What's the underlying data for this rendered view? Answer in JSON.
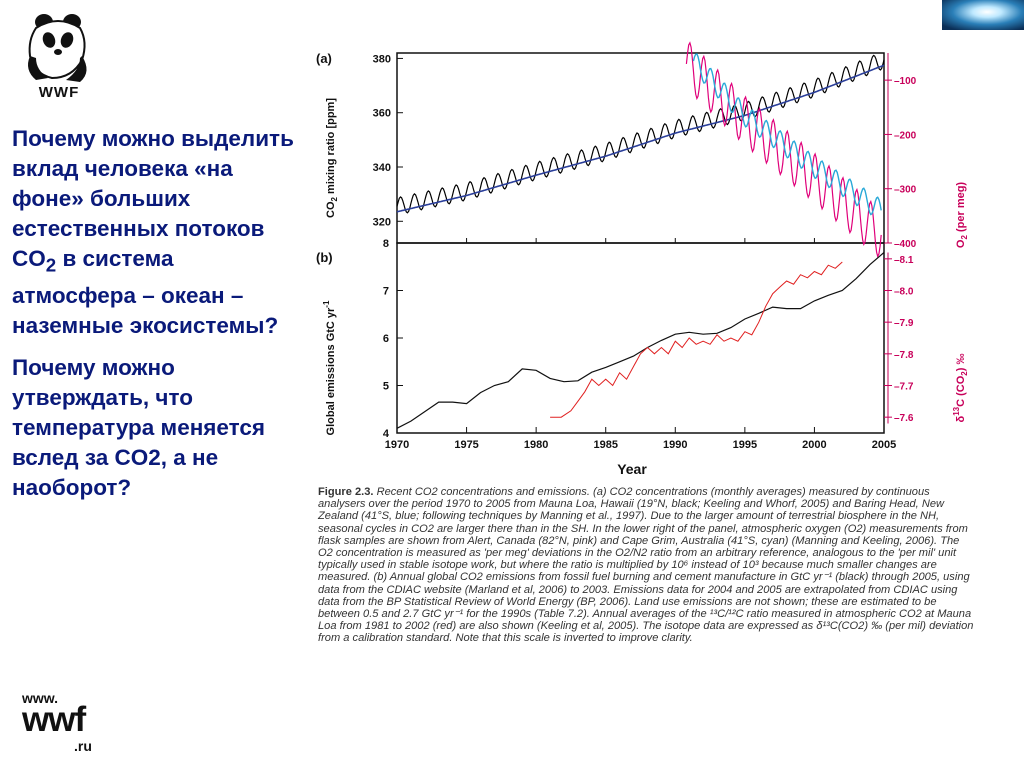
{
  "logo": {
    "text": "WWF",
    "icon": "panda-icon"
  },
  "questions": [
    {
      "before": "Почему можно выделить вклад человека «на фоне» больших естественных потоков CO",
      "sub": "2",
      "after": " в система атмосфера – океан – наземные экосистемы?"
    },
    {
      "before": "Почему можно утверждать, что температура меняется вслед за CO2, а не наоборот?",
      "sub": "",
      "after": ""
    }
  ],
  "site": {
    "line1": "www.",
    "line2": "wwf",
    "line3": ".ru"
  },
  "colors": {
    "question_text": "#0a1a7a",
    "co2_line": "#000000",
    "co2_trend": "#2b3f9a",
    "o2_alert": "#e0007a",
    "o2_cape_grim": "#29a9d8",
    "emissions": "#111111",
    "delta13c": "#e02020",
    "right_axis": "#c8005a"
  },
  "chart_data": [
    {
      "type": "line",
      "panel_label": "(a)",
      "ylabel": "CO2 mixing ratio [ppm]",
      "ylabel_main": "CO",
      "ylabel_sub": "2",
      "ylabel_rest": " mixing ratio [ppm]",
      "xlim": [
        1970,
        2005
      ],
      "ylim": [
        312,
        382
      ],
      "yticks": [
        320,
        340,
        360,
        380
      ],
      "y2label": "O2 (per meg)",
      "y2label_main": "O",
      "y2label_sub": "2",
      "y2label_rest": " (per meg)",
      "y2lim": [
        -400,
        -50
      ],
      "y2ticks": [
        -100,
        -200,
        -300,
        -400
      ],
      "series": [
        {
          "role": "co2_monthly",
          "seasonal_amplitude": 3.2,
          "x": [
            1970,
            1975,
            1980,
            1985,
            1990,
            1995,
            2000,
            2005
          ],
          "values": [
            325.5,
            331,
            338.5,
            345.5,
            354,
            360.5,
            369,
            379.5
          ]
        },
        {
          "role": "co2_trend",
          "x": [
            1970,
            1975,
            1980,
            1985,
            1990,
            1995,
            2000,
            2005
          ],
          "values": [
            323.5,
            329.5,
            337,
            344,
            352.5,
            359,
            367.5,
            377.5
          ]
        },
        {
          "role": "o2_alert",
          "seasonal_amplitude": 45,
          "x": [
            1990.8,
            1995,
            2000,
            2004.8
          ],
          "values": [
            -70,
            -175,
            -280,
            -385
          ]
        },
        {
          "role": "o2_cape_grim",
          "seasonal_amplitude": 20,
          "x": [
            1991.3,
            1995,
            2000,
            2004.8
          ],
          "values": [
            -65,
            -165,
            -260,
            -340
          ]
        }
      ]
    },
    {
      "type": "line",
      "panel_label": "(b)",
      "ylabel": "Global emissions GtC yr-1",
      "ylabel_main": "Global emissions GtC yr",
      "ylabel_sup": "-1",
      "xlabel": "Year",
      "xlim": [
        1970,
        2005
      ],
      "xticks": [
        1970,
        1975,
        1980,
        1985,
        1990,
        1995,
        2000,
        2005
      ],
      "ylim": [
        4,
        8
      ],
      "yticks": [
        4,
        5,
        6,
        7,
        8
      ],
      "y2label": "δ13C (CO2) ‰",
      "y2label_delta": "δ",
      "y2label_sup": "13",
      "y2label_main": "C (CO",
      "y2label_sub": "2",
      "y2label_rest": ") ‰",
      "y2lim": [
        -7.55,
        -8.15
      ],
      "y2ticks": [
        -8.1,
        -8.0,
        -7.9,
        -7.8,
        -7.7,
        -7.6
      ],
      "y2ticklabels": [
        "–8.1",
        "–8.0",
        "–7.9",
        "–7.8",
        "–7.7",
        "–7.6"
      ],
      "series": [
        {
          "role": "emissions",
          "x": [
            1970,
            1971,
            1972,
            1973,
            1974,
            1975,
            1976,
            1977,
            1978,
            1979,
            1980,
            1981,
            1982,
            1983,
            1984,
            1985,
            1986,
            1987,
            1988,
            1989,
            1990,
            1991,
            1992,
            1993,
            1994,
            1995,
            1996,
            1997,
            1998,
            1999,
            2000,
            2001,
            2002,
            2003,
            2004,
            2005
          ],
          "values": [
            4.1,
            4.25,
            4.45,
            4.65,
            4.65,
            4.62,
            4.85,
            5.0,
            5.08,
            5.35,
            5.32,
            5.15,
            5.08,
            5.1,
            5.28,
            5.38,
            5.5,
            5.62,
            5.8,
            5.95,
            6.08,
            6.12,
            6.08,
            6.1,
            6.22,
            6.4,
            6.52,
            6.65,
            6.62,
            6.62,
            6.78,
            6.9,
            7.0,
            7.25,
            7.55,
            7.8
          ]
        },
        {
          "role": "delta13c",
          "x": [
            1981,
            1981.8,
            1982.5,
            1983,
            1983.5,
            1984,
            1984.5,
            1985,
            1985.5,
            1986,
            1986.5,
            1987,
            1987.5,
            1988,
            1988.5,
            1989,
            1989.5,
            1990,
            1990.5,
            1991,
            1991.5,
            1992,
            1992.5,
            1993,
            1993.5,
            1994,
            1994.5,
            1995,
            1995.5,
            1996,
            1996.5,
            1997,
            1997.5,
            1998,
            1998.5,
            1999,
            1999.5,
            2000,
            2000.5,
            2001,
            2001.5,
            2002
          ],
          "values": [
            -7.6,
            -7.6,
            -7.62,
            -7.65,
            -7.68,
            -7.72,
            -7.7,
            -7.72,
            -7.7,
            -7.74,
            -7.72,
            -7.76,
            -7.8,
            -7.82,
            -7.8,
            -7.82,
            -7.8,
            -7.84,
            -7.82,
            -7.85,
            -7.83,
            -7.84,
            -7.83,
            -7.86,
            -7.84,
            -7.85,
            -7.84,
            -7.87,
            -7.86,
            -7.9,
            -7.95,
            -7.99,
            -8.01,
            -8.03,
            -8.02,
            -8.05,
            -8.04,
            -8.06,
            -8.05,
            -8.08,
            -8.07,
            -8.09
          ]
        }
      ]
    }
  ],
  "caption": {
    "figure": "Figure 2.3.",
    "text": " Recent CO2 concentrations and emissions. (a) CO2 concentrations (monthly averages) measured by continuous analysers over the period 1970 to 2005 from Mauna Loa, Hawaii (19°N, black; Keeling and Whorf, 2005) and Baring Head, New Zealand (41°S, blue; following techniques by Manning et al., 1997). Due to the larger amount of terrestrial biosphere in the NH, seasonal cycles in CO2 are larger there than in the SH. In the lower right of the panel, atmospheric oxygen (O2) measurements from flask samples are shown from Alert, Canada (82°N, pink) and Cape Grim, Australia (41°S, cyan) (Manning and Keeling, 2006). The O2 concentration is measured as 'per meg' deviations in the O2/N2 ratio from an arbitrary reference, analogous to the 'per mil' unit typically used in stable isotope work, but where the ratio is multiplied by 10⁶ instead of 10³ because much smaller changes are measured. (b) Annual global CO2 emissions from fossil fuel burning and cement manufacture in GtC yr⁻¹ (black) through 2005, using data from the CDIAC website (Marland et al, 2006) to 2003. Emissions data for 2004 and 2005 are extrapolated from CDIAC using data from the BP Statistical Review of World Energy (BP, 2006). Land use emissions are not shown; these are estimated to be between 0.5 and 2.7 GtC yr⁻¹ for the 1990s (Table 7.2). Annual averages of the ¹³C/¹²C ratio measured in atmospheric CO2 at Mauna Loa from 1981 to 2002 (red) are also shown (Keeling et al, 2005). The isotope data are expressed as δ¹³C(CO2) ‰ (per mil) deviation from a calibration standard. Note that this scale is inverted to improve clarity."
  }
}
